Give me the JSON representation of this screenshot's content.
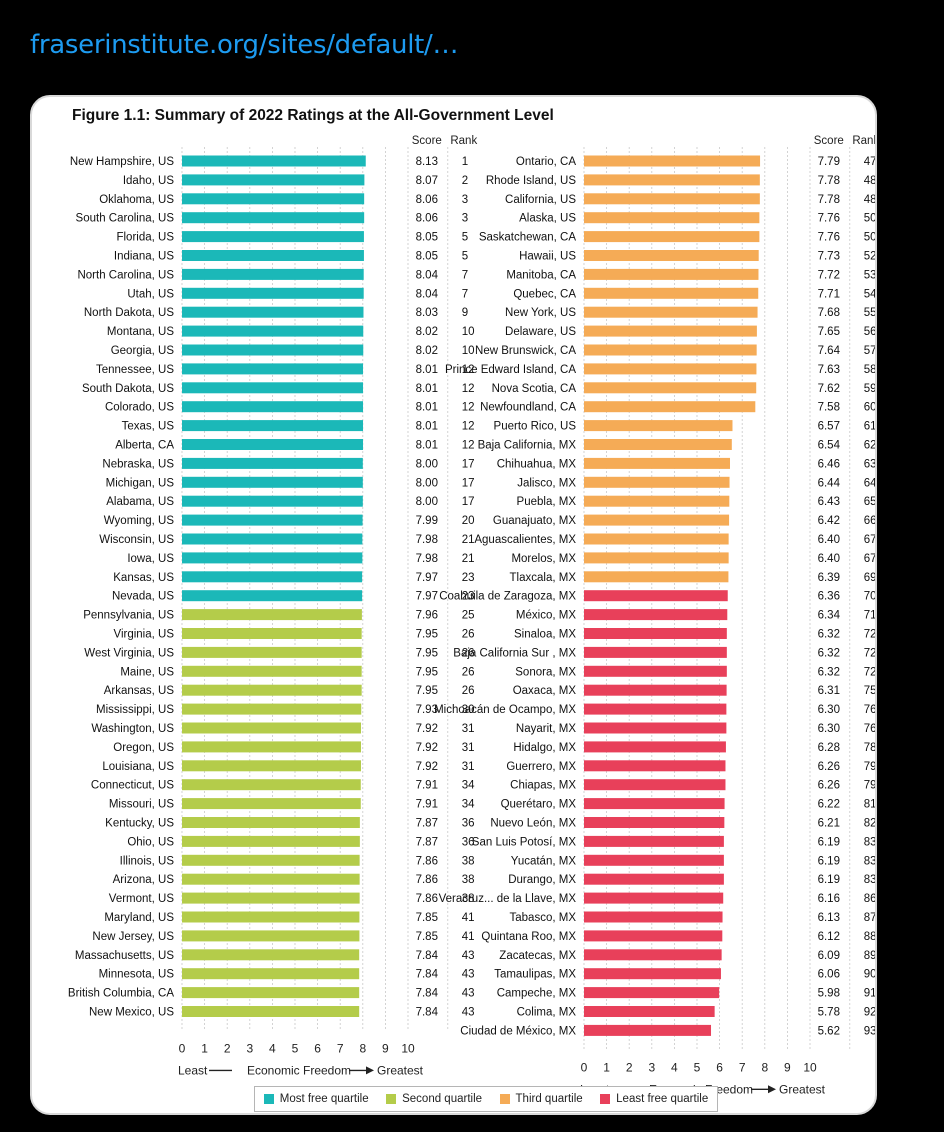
{
  "header": {
    "link_text": "fraserinstitute.org/sites/default/…"
  },
  "chart_data": {
    "type": "bar",
    "orientation": "horizontal",
    "title": "Figure 1.1: Summary of 2022 Ratings at the All-Government Level",
    "xlim": [
      0,
      10
    ],
    "xticks": [
      "0",
      "1",
      "2",
      "3",
      "4",
      "5",
      "6",
      "7",
      "8",
      "9",
      "10"
    ],
    "score_header": "Score",
    "rank_header": "Rank",
    "axis_caption": {
      "left": "Least",
      "middle": "Economic Freedom",
      "right": "Greatest"
    },
    "grid": true,
    "colors": {
      "most_free": "#1bb8b8",
      "second": "#b4cc4a",
      "third": "#f5ab56",
      "least_free": "#e8405a"
    },
    "legend": [
      {
        "label": "Most free quartile",
        "key": "most_free"
      },
      {
        "label": "Second quartile",
        "key": "second"
      },
      {
        "label": "Third quartile",
        "key": "third"
      },
      {
        "label": "Least free quartile",
        "key": "least_free"
      }
    ],
    "panels": [
      {
        "rows": [
          {
            "name": "New Hampshire, US",
            "score": "8.13",
            "rank": "1",
            "quartile": "most_free"
          },
          {
            "name": "Idaho, US",
            "score": "8.07",
            "rank": "2",
            "quartile": "most_free"
          },
          {
            "name": "Oklahoma, US",
            "score": "8.06",
            "rank": "3",
            "quartile": "most_free"
          },
          {
            "name": "South Carolina, US",
            "score": "8.06",
            "rank": "3",
            "quartile": "most_free"
          },
          {
            "name": "Florida, US",
            "score": "8.05",
            "rank": "5",
            "quartile": "most_free"
          },
          {
            "name": "Indiana, US",
            "score": "8.05",
            "rank": "5",
            "quartile": "most_free"
          },
          {
            "name": "North Carolina, US",
            "score": "8.04",
            "rank": "7",
            "quartile": "most_free"
          },
          {
            "name": "Utah, US",
            "score": "8.04",
            "rank": "7",
            "quartile": "most_free"
          },
          {
            "name": "North Dakota, US",
            "score": "8.03",
            "rank": "9",
            "quartile": "most_free"
          },
          {
            "name": "Montana, US",
            "score": "8.02",
            "rank": "10",
            "quartile": "most_free"
          },
          {
            "name": "Georgia, US",
            "score": "8.02",
            "rank": "10",
            "quartile": "most_free"
          },
          {
            "name": "Tennessee, US",
            "score": "8.01",
            "rank": "12",
            "quartile": "most_free"
          },
          {
            "name": "South Dakota, US",
            "score": "8.01",
            "rank": "12",
            "quartile": "most_free"
          },
          {
            "name": "Colorado, US",
            "score": "8.01",
            "rank": "12",
            "quartile": "most_free"
          },
          {
            "name": "Texas, US",
            "score": "8.01",
            "rank": "12",
            "quartile": "most_free"
          },
          {
            "name": "Alberta, CA",
            "score": "8.01",
            "rank": "12",
            "quartile": "most_free"
          },
          {
            "name": "Nebraska, US",
            "score": "8.00",
            "rank": "17",
            "quartile": "most_free"
          },
          {
            "name": "Michigan, US",
            "score": "8.00",
            "rank": "17",
            "quartile": "most_free"
          },
          {
            "name": "Alabama, US",
            "score": "8.00",
            "rank": "17",
            "quartile": "most_free"
          },
          {
            "name": "Wyoming, US",
            "score": "7.99",
            "rank": "20",
            "quartile": "most_free"
          },
          {
            "name": "Wisconsin, US",
            "score": "7.98",
            "rank": "21",
            "quartile": "most_free"
          },
          {
            "name": "Iowa, US",
            "score": "7.98",
            "rank": "21",
            "quartile": "most_free"
          },
          {
            "name": "Kansas, US",
            "score": "7.97",
            "rank": "23",
            "quartile": "most_free"
          },
          {
            "name": "Nevada, US",
            "score": "7.97",
            "rank": "23",
            "quartile": "most_free"
          },
          {
            "name": "Pennsylvania, US",
            "score": "7.96",
            "rank": "25",
            "quartile": "second"
          },
          {
            "name": "Virginia, US",
            "score": "7.95",
            "rank": "26",
            "quartile": "second"
          },
          {
            "name": "West Virginia, US",
            "score": "7.95",
            "rank": "26",
            "quartile": "second"
          },
          {
            "name": "Maine, US",
            "score": "7.95",
            "rank": "26",
            "quartile": "second"
          },
          {
            "name": "Arkansas, US",
            "score": "7.95",
            "rank": "26",
            "quartile": "second"
          },
          {
            "name": "Mississippi, US",
            "score": "7.93",
            "rank": "30",
            "quartile": "second"
          },
          {
            "name": "Washington, US",
            "score": "7.92",
            "rank": "31",
            "quartile": "second"
          },
          {
            "name": "Oregon, US",
            "score": "7.92",
            "rank": "31",
            "quartile": "second"
          },
          {
            "name": "Louisiana, US",
            "score": "7.92",
            "rank": "31",
            "quartile": "second"
          },
          {
            "name": "Connecticut, US",
            "score": "7.91",
            "rank": "34",
            "quartile": "second"
          },
          {
            "name": "Missouri, US",
            "score": "7.91",
            "rank": "34",
            "quartile": "second"
          },
          {
            "name": "Kentucky, US",
            "score": "7.87",
            "rank": "36",
            "quartile": "second"
          },
          {
            "name": "Ohio, US",
            "score": "7.87",
            "rank": "36",
            "quartile": "second"
          },
          {
            "name": "Illinois, US",
            "score": "7.86",
            "rank": "38",
            "quartile": "second"
          },
          {
            "name": "Arizona, US",
            "score": "7.86",
            "rank": "38",
            "quartile": "second"
          },
          {
            "name": "Vermont, US",
            "score": "7.86",
            "rank": "38",
            "quartile": "second"
          },
          {
            "name": "Maryland, US",
            "score": "7.85",
            "rank": "41",
            "quartile": "second"
          },
          {
            "name": "New Jersey, US",
            "score": "7.85",
            "rank": "41",
            "quartile": "second"
          },
          {
            "name": "Massachusetts, US",
            "score": "7.84",
            "rank": "43",
            "quartile": "second"
          },
          {
            "name": "Minnesota, US",
            "score": "7.84",
            "rank": "43",
            "quartile": "second"
          },
          {
            "name": "British Columbia, CA",
            "score": "7.84",
            "rank": "43",
            "quartile": "second"
          },
          {
            "name": "New Mexico, US",
            "score": "7.84",
            "rank": "43",
            "quartile": "second"
          }
        ]
      },
      {
        "rows": [
          {
            "name": "Ontario, CA",
            "score": "7.79",
            "rank": "47",
            "quartile": "third"
          },
          {
            "name": "Rhode Island, US",
            "score": "7.78",
            "rank": "48",
            "quartile": "third"
          },
          {
            "name": "California, US",
            "score": "7.78",
            "rank": "48",
            "quartile": "third"
          },
          {
            "name": "Alaska, US",
            "score": "7.76",
            "rank": "50",
            "quartile": "third"
          },
          {
            "name": "Saskatchewan, CA",
            "score": "7.76",
            "rank": "50",
            "quartile": "third"
          },
          {
            "name": "Hawaii, US",
            "score": "7.73",
            "rank": "52",
            "quartile": "third"
          },
          {
            "name": "Manitoba, CA",
            "score": "7.72",
            "rank": "53",
            "quartile": "third"
          },
          {
            "name": "Quebec, CA",
            "score": "7.71",
            "rank": "54",
            "quartile": "third"
          },
          {
            "name": "New York, US",
            "score": "7.68",
            "rank": "55",
            "quartile": "third"
          },
          {
            "name": "Delaware, US",
            "score": "7.65",
            "rank": "56",
            "quartile": "third"
          },
          {
            "name": "New Brunswick, CA",
            "score": "7.64",
            "rank": "57",
            "quartile": "third"
          },
          {
            "name": "Prince Edward Island, CA",
            "score": "7.63",
            "rank": "58",
            "quartile": "third"
          },
          {
            "name": "Nova Scotia, CA",
            "score": "7.62",
            "rank": "59",
            "quartile": "third"
          },
          {
            "name": "Newfoundland, CA",
            "score": "7.58",
            "rank": "60",
            "quartile": "third"
          },
          {
            "name": "Puerto Rico, US",
            "score": "6.57",
            "rank": "61",
            "quartile": "third"
          },
          {
            "name": "Baja California, MX",
            "score": "6.54",
            "rank": "62",
            "quartile": "third"
          },
          {
            "name": "Chihuahua, MX",
            "score": "6.46",
            "rank": "63",
            "quartile": "third"
          },
          {
            "name": "Jalisco, MX",
            "score": "6.44",
            "rank": "64",
            "quartile": "third"
          },
          {
            "name": "Puebla, MX",
            "score": "6.43",
            "rank": "65",
            "quartile": "third"
          },
          {
            "name": "Guanajuato, MX",
            "score": "6.42",
            "rank": "66",
            "quartile": "third"
          },
          {
            "name": "Aguascalientes, MX",
            "score": "6.40",
            "rank": "67",
            "quartile": "third"
          },
          {
            "name": "Morelos, MX",
            "score": "6.40",
            "rank": "67",
            "quartile": "third"
          },
          {
            "name": "Tlaxcala, MX",
            "score": "6.39",
            "rank": "69",
            "quartile": "third"
          },
          {
            "name": "Coahuila de Zaragoza, MX",
            "score": "6.36",
            "rank": "70",
            "quartile": "least_free"
          },
          {
            "name": "México, MX",
            "score": "6.34",
            "rank": "71",
            "quartile": "least_free"
          },
          {
            "name": "Sinaloa, MX",
            "score": "6.32",
            "rank": "72",
            "quartile": "least_free"
          },
          {
            "name": "Baja California Sur , MX",
            "score": "6.32",
            "rank": "72",
            "quartile": "least_free"
          },
          {
            "name": "Sonora, MX",
            "score": "6.32",
            "rank": "72",
            "quartile": "least_free"
          },
          {
            "name": "Oaxaca, MX",
            "score": "6.31",
            "rank": "75",
            "quartile": "least_free"
          },
          {
            "name": "Michoacán de Ocampo, MX",
            "score": "6.30",
            "rank": "76",
            "quartile": "least_free"
          },
          {
            "name": "Nayarit, MX",
            "score": "6.30",
            "rank": "76",
            "quartile": "least_free"
          },
          {
            "name": "Hidalgo, MX",
            "score": "6.28",
            "rank": "78",
            "quartile": "least_free"
          },
          {
            "name": "Guerrero, MX",
            "score": "6.26",
            "rank": "79",
            "quartile": "least_free"
          },
          {
            "name": "Chiapas, MX",
            "score": "6.26",
            "rank": "79",
            "quartile": "least_free"
          },
          {
            "name": "Querétaro, MX",
            "score": "6.22",
            "rank": "81",
            "quartile": "least_free"
          },
          {
            "name": "Nuevo León, MX",
            "score": "6.21",
            "rank": "82",
            "quartile": "least_free"
          },
          {
            "name": "San Luis Potosí, MX",
            "score": "6.19",
            "rank": "83",
            "quartile": "least_free"
          },
          {
            "name": "Yucatán, MX",
            "score": "6.19",
            "rank": "83",
            "quartile": "least_free"
          },
          {
            "name": "Durango, MX",
            "score": "6.19",
            "rank": "83",
            "quartile": "least_free"
          },
          {
            "name": "Veracruz... de la Llave, MX",
            "score": "6.16",
            "rank": "86",
            "quartile": "least_free"
          },
          {
            "name": "Tabasco, MX",
            "score": "6.13",
            "rank": "87",
            "quartile": "least_free"
          },
          {
            "name": "Quintana Roo, MX",
            "score": "6.12",
            "rank": "88",
            "quartile": "least_free"
          },
          {
            "name": "Zacatecas, MX",
            "score": "6.09",
            "rank": "89",
            "quartile": "least_free"
          },
          {
            "name": "Tamaulipas, MX",
            "score": "6.06",
            "rank": "90",
            "quartile": "least_free"
          },
          {
            "name": "Campeche, MX",
            "score": "5.98",
            "rank": "91",
            "quartile": "least_free"
          },
          {
            "name": "Colima, MX",
            "score": "5.78",
            "rank": "92",
            "quartile": "least_free"
          },
          {
            "name": "Ciudad de México, MX",
            "score": "5.62",
            "rank": "93",
            "quartile": "least_free"
          }
        ]
      }
    ]
  }
}
